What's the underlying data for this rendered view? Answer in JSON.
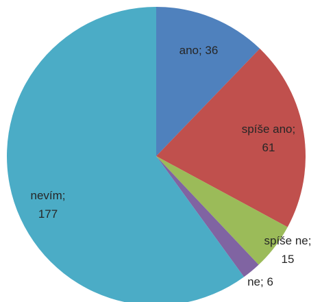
{
  "chart_data": {
    "type": "pie",
    "values": [
      36,
      61,
      15,
      6,
      177
    ],
    "value_labels": [
      "ano; 36",
      "spíše ano; 61",
      "spíše ne; 15",
      "ne; 6",
      "nevím; 177"
    ],
    "colors": [
      "#4f81bd",
      "#c0504d",
      "#9bbb59",
      "#8064a2",
      "#4bacc6"
    ]
  }
}
